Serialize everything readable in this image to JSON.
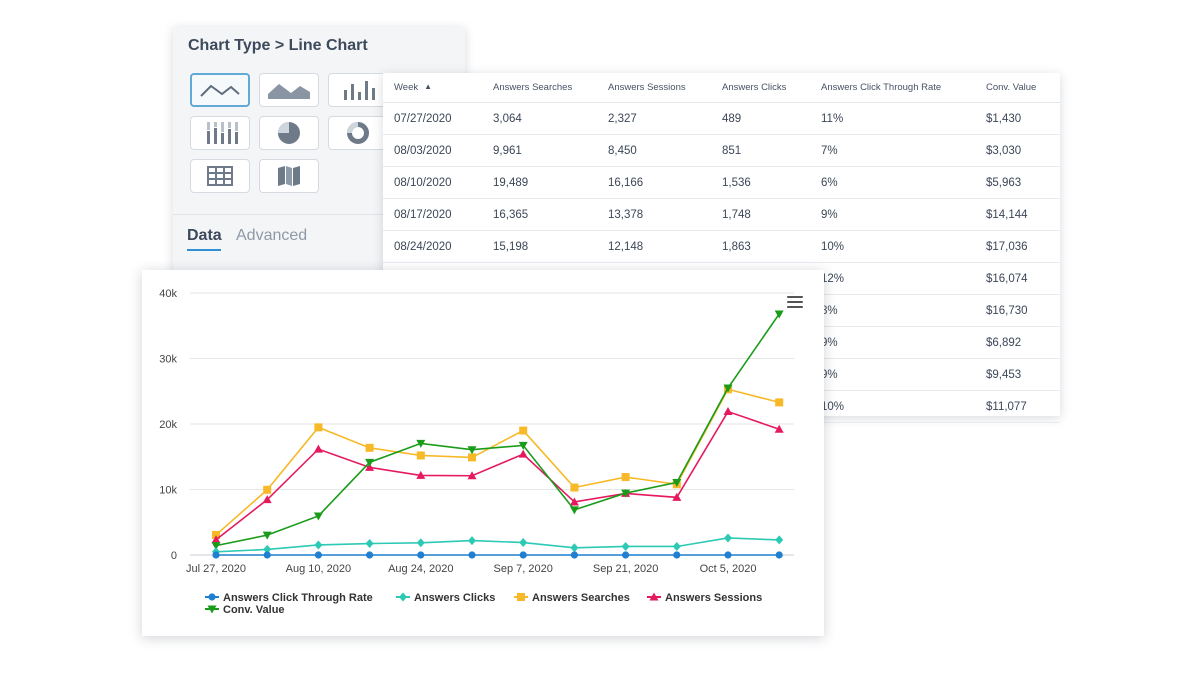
{
  "settings": {
    "title": "Chart Type > Line Chart",
    "chart_types": [
      {
        "name": "line",
        "icon": "line-chart-icon",
        "selected": true
      },
      {
        "name": "area",
        "icon": "area-chart-icon",
        "selected": false
      },
      {
        "name": "bar",
        "icon": "bar-chart-icon",
        "selected": false
      },
      {
        "name": "stacked-bar",
        "icon": "stacked-bar-icon",
        "selected": false
      },
      {
        "name": "pie",
        "icon": "pie-chart-icon",
        "selected": false
      },
      {
        "name": "donut",
        "icon": "donut-chart-icon",
        "selected": false
      },
      {
        "name": "table",
        "icon": "table-icon",
        "selected": false
      },
      {
        "name": "map",
        "icon": "map-icon",
        "selected": false
      }
    ],
    "tabs": [
      "Data",
      "Advanced"
    ],
    "active_tab": "Data"
  },
  "table": {
    "columns": [
      "Week",
      "Answers Searches",
      "Answers Sessions",
      "Answers Clicks",
      "Answers Click Through Rate",
      "Conv. Value"
    ],
    "sort_column": "Week",
    "sort_direction": "ascending",
    "rows": [
      [
        "07/27/2020",
        "3,064",
        "2,327",
        "489",
        "11%",
        "$1,430"
      ],
      [
        "08/03/2020",
        "9,961",
        "8,450",
        "851",
        "7%",
        "$3,030"
      ],
      [
        "08/10/2020",
        "19,489",
        "16,166",
        "1,536",
        "6%",
        "$5,963"
      ],
      [
        "08/17/2020",
        "16,365",
        "13,378",
        "1,748",
        "9%",
        "$14,144"
      ],
      [
        "08/24/2020",
        "15,198",
        "12,148",
        "1,863",
        "10%",
        "$17,036"
      ],
      [
        "",
        "",
        "",
        "",
        "12%",
        "$16,074"
      ],
      [
        "",
        "",
        "",
        "",
        "8%",
        "$16,730"
      ],
      [
        "",
        "",
        "",
        "",
        "9%",
        "$6,892"
      ],
      [
        "",
        "",
        "",
        "",
        "9%",
        "$9,453"
      ],
      [
        "",
        "",
        "",
        "",
        "10%",
        "$11,077"
      ]
    ]
  },
  "chart_data": {
    "type": "line",
    "x": [
      "Jul 27, 2020",
      "Aug 3, 2020",
      "Aug 10, 2020",
      "Aug 17, 2020",
      "Aug 24, 2020",
      "Aug 31, 2020",
      "Sep 7, 2020",
      "Sep 14, 2020",
      "Sep 21, 2020",
      "Sep 28, 2020",
      "Oct 5, 2020",
      "Oct 12, 2020"
    ],
    "x_tick_labels": [
      "Jul 27, 2020",
      "Aug 10, 2020",
      "Aug 24, 2020",
      "Sep 7, 2020",
      "Sep 21, 2020",
      "Oct 5, 2020"
    ],
    "y_ticks": [
      0,
      10000,
      20000,
      30000,
      40000
    ],
    "y_tick_labels": [
      "0",
      "10k",
      "20k",
      "30k",
      "40k"
    ],
    "ylim": [
      0,
      40000
    ],
    "grid": true,
    "legend_position": "bottom",
    "series": [
      {
        "name": "Answers Click Through Rate",
        "color": "#1f7fd1",
        "marker": "circle",
        "values": [
          0,
          0,
          0,
          0,
          0,
          0,
          0,
          0,
          0,
          0,
          0,
          0
        ]
      },
      {
        "name": "Answers Clicks",
        "color": "#2cc9b4",
        "marker": "diamond",
        "values": [
          489,
          851,
          1536,
          1748,
          1863,
          2200,
          1900,
          1100,
          1300,
          1300,
          2600,
          2300
        ]
      },
      {
        "name": "Answers Searches",
        "color": "#f7b928",
        "marker": "square",
        "values": [
          3064,
          9961,
          19489,
          16365,
          15198,
          14900,
          19000,
          10300,
          11900,
          10800,
          25300,
          23300
        ]
      },
      {
        "name": "Answers Sessions",
        "color": "#e6195f",
        "marker": "triangle",
        "values": [
          2327,
          8450,
          16166,
          13378,
          12148,
          12100,
          15400,
          8100,
          9400,
          8800,
          21900,
          19200
        ]
      },
      {
        "name": "Conv. Value",
        "color": "#1a9c1a",
        "marker": "triangle-down",
        "values": [
          1430,
          3030,
          5963,
          14144,
          17036,
          16074,
          16730,
          6892,
          9453,
          11077,
          25500,
          36800
        ]
      }
    ]
  }
}
